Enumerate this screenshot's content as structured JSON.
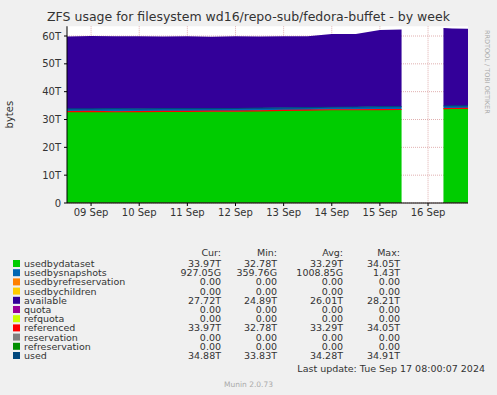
{
  "chart_data": {
    "type": "area",
    "title": "ZFS usage for filesystem wd16/repo-sub/fedora-buffet - by week",
    "ylabel": "bytes",
    "side_text": "RRDTOOL / TOBI OETIKER",
    "footer": "Last update: Tue Sep 17 08:00:07 2024",
    "credit": "Munin 2.0.73",
    "stacked": true,
    "grid": true,
    "stat_names": [
      "Cur:",
      "Min:",
      "Avg:",
      "Max:"
    ],
    "x": [
      9.0,
      9.5,
      10.0,
      10.5,
      11.0,
      11.5,
      12.0,
      12.5,
      13.0,
      13.5,
      14.0,
      14.5,
      15.0,
      15.5,
      15.95,
      16.0,
      16.5,
      16.82,
      17.0,
      17.33
    ],
    "xlim": [
      9.0,
      17.33
    ],
    "xticks": [
      {
        "value": 9.5,
        "label": "09 Sep"
      },
      {
        "value": 10.5,
        "label": "10 Sep"
      },
      {
        "value": 11.5,
        "label": "11 Sep"
      },
      {
        "value": 12.5,
        "label": "12 Sep"
      },
      {
        "value": 13.5,
        "label": "13 Sep"
      },
      {
        "value": 14.5,
        "label": "14 Sep"
      },
      {
        "value": 15.5,
        "label": "15 Sep"
      },
      {
        "value": 16.5,
        "label": "16 Sep"
      }
    ],
    "ylim": [
      0,
      63.5
    ],
    "yticks": [
      0,
      {
        "value": 10,
        "label": "10T"
      },
      {
        "value": 20,
        "label": "20T"
      },
      {
        "value": 30,
        "label": "30T"
      },
      {
        "value": 40,
        "label": "40T"
      },
      {
        "value": 50,
        "label": "50T"
      },
      {
        "value": 60,
        "label": "60T"
      }
    ],
    "series": [
      {
        "name": "usedbydataset",
        "type": "area",
        "color": "#00CC00",
        "values": [
          32.8,
          32.9,
          32.78,
          32.85,
          32.9,
          32.95,
          33.0,
          33.0,
          33.1,
          33.3,
          33.4,
          33.5,
          33.5,
          33.55,
          33.6,
          null,
          null,
          33.9,
          33.95,
          33.97
        ],
        "stats": [
          {
            "value": 33.97,
            "label": "33.97T"
          },
          {
            "value": 32.78,
            "label": "32.78T"
          },
          {
            "value": 33.29,
            "label": "33.29T"
          },
          {
            "value": 34.05,
            "label": "34.05T"
          }
        ]
      },
      {
        "name": "usedbysnapshots",
        "type": "area",
        "color": "#0066B3",
        "values": [
          1.0,
          0.9,
          1.1,
          1.0,
          1.0,
          0.95,
          0.9,
          0.95,
          1.0,
          0.9,
          0.85,
          0.9,
          1.0,
          1.1,
          1.0,
          null,
          null,
          0.95,
          0.93,
          0.91
        ],
        "stats": [
          {
            "value": 0.92705,
            "label": "927.05G"
          },
          {
            "value": 0.35976,
            "label": "359.76G"
          },
          {
            "value": 1.00885,
            "label": "1008.85G"
          },
          {
            "value": 1.43,
            "label": "1.43T"
          }
        ]
      },
      {
        "name": "usedbyrefreservation",
        "type": "area",
        "color": "#FF8000",
        "values": [
          0,
          0,
          0,
          0,
          0,
          0,
          0,
          0,
          0,
          0,
          0,
          0,
          0,
          0,
          0,
          null,
          null,
          0,
          0,
          0
        ],
        "stats": [
          {
            "value": 0,
            "label": "0.00"
          },
          {
            "value": 0,
            "label": "0.00"
          },
          {
            "value": 0,
            "label": "0.00"
          },
          {
            "value": 0,
            "label": "0.00"
          }
        ]
      },
      {
        "name": "usedbychildren",
        "type": "area",
        "color": "#FFCC00",
        "values": [
          0,
          0,
          0,
          0,
          0,
          0,
          0,
          0,
          0,
          0,
          0,
          0,
          0,
          0,
          0,
          null,
          null,
          0,
          0,
          0
        ],
        "stats": [
          {
            "value": 0,
            "label": "0.00"
          },
          {
            "value": 0,
            "label": "0.00"
          },
          {
            "value": 0,
            "label": "0.00"
          },
          {
            "value": 0,
            "label": "0.00"
          }
        ]
      },
      {
        "name": "available",
        "type": "area",
        "color": "#330099",
        "values": [
          26.0,
          26.2,
          26.02,
          26.05,
          25.9,
          26.0,
          25.8,
          25.95,
          25.7,
          25.7,
          25.65,
          26.3,
          26.2,
          27.55,
          27.7,
          null,
          null,
          28.05,
          27.82,
          27.72
        ],
        "stats": [
          {
            "value": 27.72,
            "label": "27.72T"
          },
          {
            "value": 24.89,
            "label": "24.89T"
          },
          {
            "value": 26.01,
            "label": "26.01T"
          },
          {
            "value": 28.21,
            "label": "28.21T"
          }
        ]
      },
      {
        "name": "quota",
        "type": "line",
        "color": "#990099",
        "values": [
          0,
          0,
          0,
          0,
          0,
          0,
          0,
          0,
          0,
          0,
          0,
          0,
          0,
          0,
          0,
          null,
          null,
          0,
          0,
          0
        ],
        "stats": [
          {
            "value": 0,
            "label": "0.00"
          },
          {
            "value": 0,
            "label": "0.00"
          },
          {
            "value": 0,
            "label": "0.00"
          },
          {
            "value": 0,
            "label": "0.00"
          }
        ]
      },
      {
        "name": "refquota",
        "type": "line",
        "color": "#CCFF00",
        "values": [
          0,
          0,
          0,
          0,
          0,
          0,
          0,
          0,
          0,
          0,
          0,
          0,
          0,
          0,
          0,
          null,
          null,
          0,
          0,
          0
        ],
        "stats": [
          {
            "value": 0,
            "label": "0.00"
          },
          {
            "value": 0,
            "label": "0.00"
          },
          {
            "value": 0,
            "label": "0.00"
          },
          {
            "value": 0,
            "label": "0.00"
          }
        ]
      },
      {
        "name": "referenced",
        "type": "line",
        "color": "#FF0000",
        "values": [
          32.8,
          32.9,
          32.78,
          32.85,
          32.9,
          32.95,
          33.0,
          33.0,
          33.1,
          33.3,
          33.4,
          33.5,
          33.5,
          33.55,
          33.6,
          null,
          null,
          33.9,
          33.95,
          33.97
        ],
        "stats": [
          {
            "value": 33.97,
            "label": "33.97T"
          },
          {
            "value": 32.78,
            "label": "32.78T"
          },
          {
            "value": 33.29,
            "label": "33.29T"
          },
          {
            "value": 34.05,
            "label": "34.05T"
          }
        ]
      },
      {
        "name": "reservation",
        "type": "line",
        "color": "#808080",
        "values": [
          0,
          0,
          0,
          0,
          0,
          0,
          0,
          0,
          0,
          0,
          0,
          0,
          0,
          0,
          0,
          null,
          null,
          0,
          0,
          0
        ],
        "stats": [
          {
            "value": 0,
            "label": "0.00"
          },
          {
            "value": 0,
            "label": "0.00"
          },
          {
            "value": 0,
            "label": "0.00"
          },
          {
            "value": 0,
            "label": "0.00"
          }
        ]
      },
      {
        "name": "refreservation",
        "type": "line",
        "color": "#008F00",
        "values": [
          0,
          0,
          0,
          0,
          0,
          0,
          0,
          0,
          0,
          0,
          0,
          0,
          0,
          0,
          0,
          null,
          null,
          0,
          0,
          0
        ],
        "stats": [
          {
            "value": 0,
            "label": "0.00"
          },
          {
            "value": 0,
            "label": "0.00"
          },
          {
            "value": 0,
            "label": "0.00"
          },
          {
            "value": 0,
            "label": "0.00"
          }
        ]
      },
      {
        "name": "used",
        "type": "line",
        "color": "#00487D",
        "values": [
          33.8,
          33.8,
          33.88,
          33.85,
          33.9,
          33.9,
          33.9,
          33.95,
          34.1,
          34.2,
          34.25,
          34.4,
          34.5,
          34.65,
          34.6,
          null,
          null,
          34.85,
          34.88,
          34.88
        ],
        "stats": [
          {
            "value": 34.88,
            "label": "34.88T"
          },
          {
            "value": 33.83,
            "label": "33.83T"
          },
          {
            "value": 34.28,
            "label": "34.28T"
          },
          {
            "value": 34.91,
            "label": "34.91T"
          }
        ]
      }
    ]
  }
}
